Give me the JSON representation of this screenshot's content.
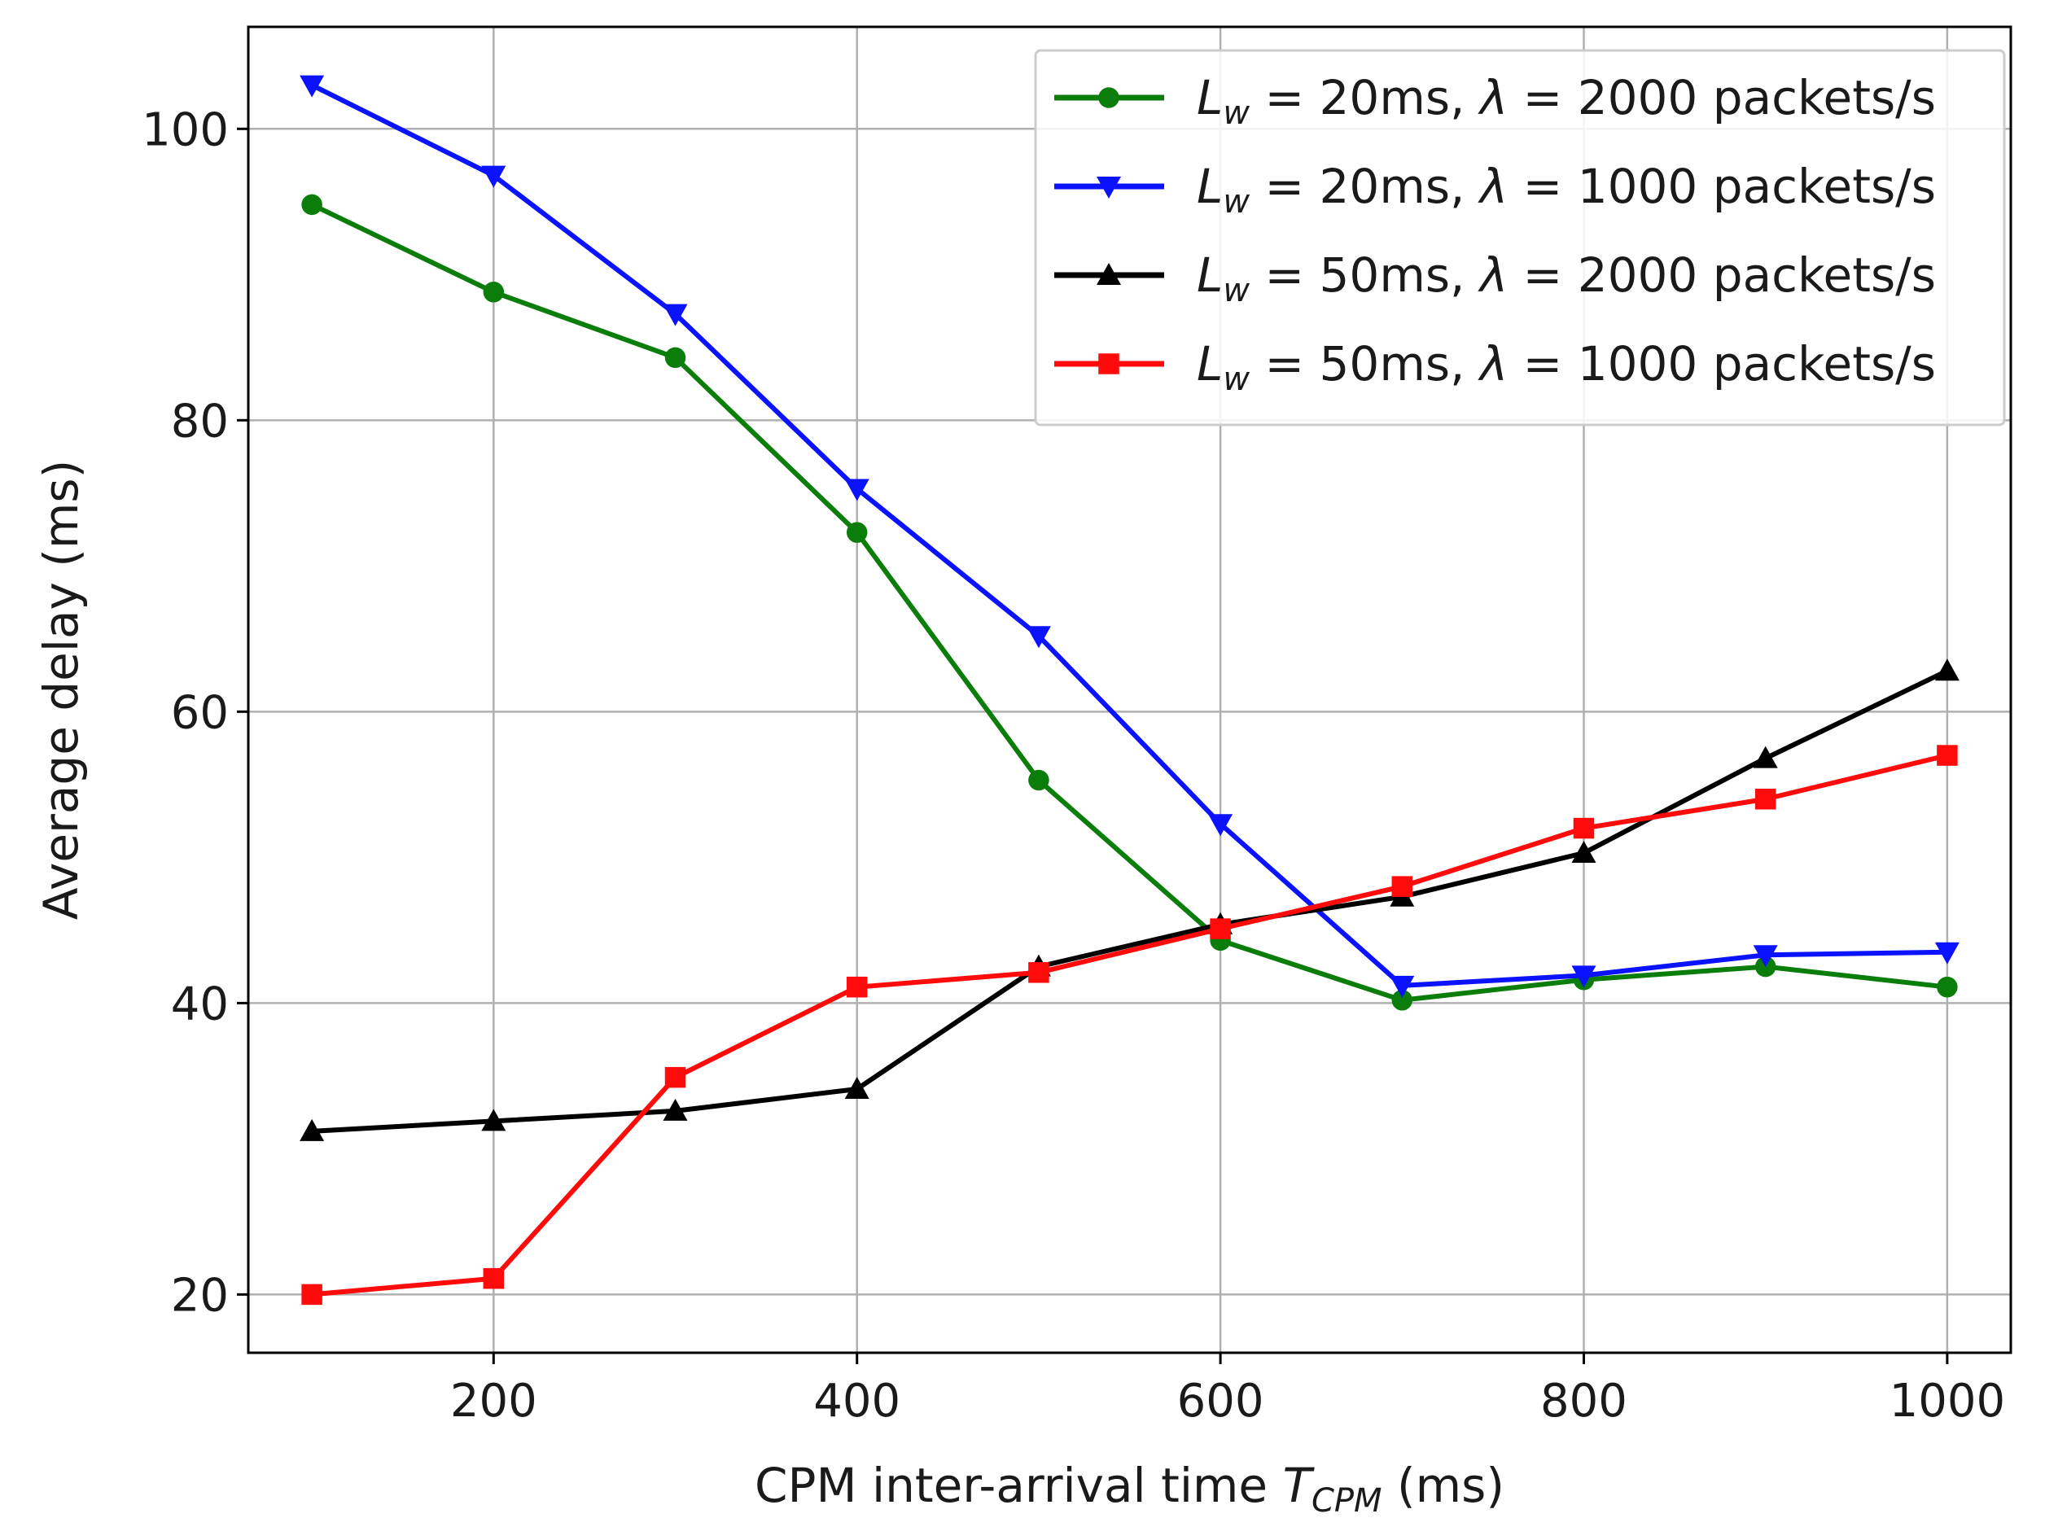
{
  "chart_data": {
    "type": "line",
    "title": "",
    "xlabel": {
      "main": "CPM inter-arrival time ",
      "symbol": "T",
      "subscript": "CPM",
      "unit": " (ms)"
    },
    "ylabel": "Average delay (ms)",
    "xlim": [
      65,
      1035
    ],
    "ylim": [
      16,
      107
    ],
    "xticks": [
      200,
      400,
      600,
      800,
      1000
    ],
    "yticks": [
      20,
      40,
      60,
      80,
      100
    ],
    "grid": true,
    "legend_position": "top-right",
    "x": [
      100,
      200,
      300,
      400,
      500,
      600,
      700,
      800,
      900,
      1000
    ],
    "series": [
      {
        "name": "L_w = 20ms, λ = 2000 packets/s",
        "legend": {
          "lw": "20ms",
          "lambda": "2000 packets/s"
        },
        "color": "#0a7d0a",
        "marker": "circle",
        "values": [
          94.8,
          88.8,
          84.3,
          72.3,
          55.3,
          44.3,
          40.2,
          41.6,
          42.5,
          41.1
        ]
      },
      {
        "name": "L_w = 20ms, λ = 1000 packets/s",
        "legend": {
          "lw": "20ms",
          "lambda": "1000 packets/s"
        },
        "color": "#0b12ff",
        "marker": "triangle-down",
        "values": [
          103.0,
          96.8,
          87.3,
          75.3,
          65.2,
          52.3,
          41.2,
          41.9,
          43.3,
          43.5
        ]
      },
      {
        "name": "L_w = 50ms, λ = 2000 packets/s",
        "legend": {
          "lw": "50ms",
          "lambda": "2000 packets/s"
        },
        "color": "#000000",
        "marker": "triangle-up",
        "values": [
          31.2,
          31.9,
          32.6,
          34.1,
          42.5,
          45.4,
          47.3,
          50.3,
          56.8,
          62.8
        ]
      },
      {
        "name": "L_w = 50ms, λ = 1000 packets/s",
        "legend": {
          "lw": "50ms",
          "lambda": "1000 packets/s"
        },
        "color": "#ff0b0b",
        "marker": "square",
        "values": [
          20.0,
          21.1,
          34.9,
          41.1,
          42.1,
          45.1,
          48.0,
          52.0,
          54.0,
          57.0
        ]
      }
    ]
  }
}
